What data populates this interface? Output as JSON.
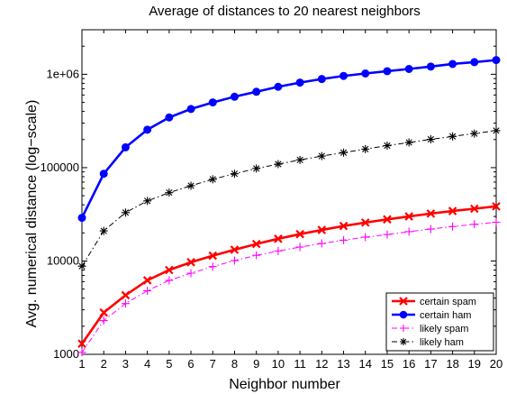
{
  "chart_data": {
    "type": "line",
    "title": "Average of distances to 20 nearest neighbors",
    "xlabel": "Neighbor number",
    "ylabel": "Avg. numerical distance (log−scale)",
    "yscale": "log",
    "xlim": [
      1,
      20
    ],
    "ylim": [
      1000,
      3000000
    ],
    "x": [
      1,
      2,
      3,
      4,
      5,
      6,
      7,
      8,
      9,
      10,
      11,
      12,
      13,
      14,
      15,
      16,
      17,
      18,
      19,
      20
    ],
    "xticks": [
      "1",
      "2",
      "3",
      "4",
      "5",
      "6",
      "7",
      "8",
      "9",
      "10",
      "11",
      "12",
      "13",
      "14",
      "15",
      "16",
      "17",
      "18",
      "19",
      "20"
    ],
    "yticks": [
      {
        "value": 1000,
        "label": "1000"
      },
      {
        "value": 10000,
        "label": "10000"
      },
      {
        "value": 100000,
        "label": "100000"
      },
      {
        "value": 1000000,
        "label": "1e+06"
      }
    ],
    "grid": false,
    "legend_position": "bottom-right",
    "series": [
      {
        "name": "certain spam",
        "color": "#ff0000",
        "marker": "x",
        "line": "solid",
        "values": [
          1300,
          2800,
          4300,
          6200,
          8000,
          9700,
          11400,
          13200,
          15200,
          17300,
          19400,
          21500,
          23700,
          25800,
          27900,
          30000,
          32200,
          34300,
          36300,
          38500
        ]
      },
      {
        "name": "certain ham",
        "color": "#0000ff",
        "marker": "circle",
        "line": "solid",
        "values": [
          29000,
          86000,
          165000,
          255000,
          345000,
          425000,
          500000,
          575000,
          650000,
          735000,
          815000,
          890000,
          960000,
          1020000,
          1080000,
          1140000,
          1210000,
          1290000,
          1350000,
          1420000
        ]
      },
      {
        "name": "likely spam",
        "color": "#ff00ff",
        "marker": "plus",
        "line": "dashdot",
        "values": [
          1050,
          2300,
          3500,
          4800,
          6200,
          7400,
          8700,
          10100,
          11500,
          12800,
          14100,
          15400,
          16700,
          18000,
          19200,
          20600,
          22000,
          23400,
          24700,
          26000
        ]
      },
      {
        "name": "likely ham",
        "color": "#000000",
        "marker": "star",
        "line": "dashdot",
        "values": [
          8800,
          21000,
          33000,
          44000,
          54000,
          64000,
          75000,
          86000,
          98000,
          109000,
          121000,
          133000,
          145000,
          158000,
          172000,
          186000,
          201000,
          216000,
          232000,
          249000
        ]
      }
    ]
  }
}
